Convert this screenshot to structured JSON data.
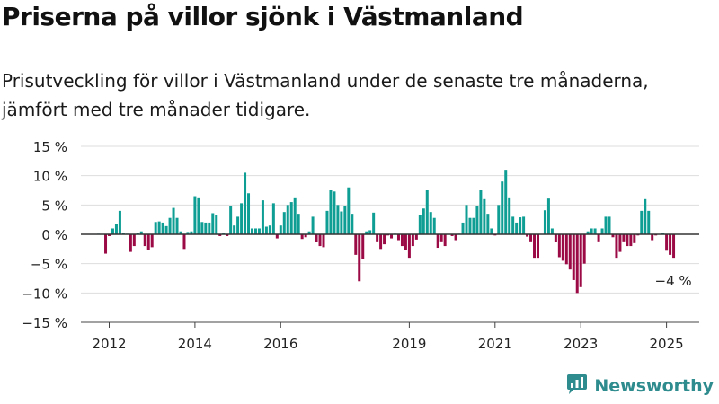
{
  "header": {
    "title": "Priserna på villor sjönk i Västmanland",
    "subtitle": "Prisutveckling för villor i Västmanland under de senaste tre månaderna, jämfört med tre månader tidigare."
  },
  "brand": {
    "name": "Newsworthy",
    "icon": "newsworthy-logo-icon"
  },
  "colors": {
    "positive": "#0f9e94",
    "negative": "#9c0a46",
    "grid": "#dddddd",
    "zero_line": "#333333",
    "brand": "#2e8b8e"
  },
  "chart_data": {
    "type": "bar",
    "x_start": "2011-10",
    "interval": "month",
    "x_ticks": [
      "2012",
      "2014",
      "2016",
      "2019",
      "2021",
      "2023",
      "2025"
    ],
    "y_ticks": [
      "15 %",
      "10 %",
      "5 %",
      "0 %",
      "−5 %",
      "−10 %",
      "−15 %"
    ],
    "ylim": [
      -15,
      15
    ],
    "grid": true,
    "annotation": "−4 %",
    "values": [
      0.1,
      0,
      -3.3,
      -0.3,
      1,
      1.8,
      4,
      0.3,
      0.1,
      -3,
      -2,
      0.2,
      0.5,
      -2,
      -2.7,
      -2.2,
      2.1,
      2.2,
      2,
      1.4,
      2.8,
      4.5,
      2.8,
      0.5,
      -2.5,
      0.4,
      0.5,
      6.5,
      6.3,
      2.1,
      2,
      2,
      3.6,
      3.3,
      -0.3,
      0.3,
      -0.3,
      4.8,
      1.5,
      3,
      5.3,
      10.5,
      7,
      1,
      1,
      1,
      5.8,
      1.3,
      1.5,
      5.3,
      -0.7,
      1.5,
      3.8,
      5,
      5.5,
      6.3,
      3.5,
      -0.8,
      -0.5,
      0.5,
      3,
      -1.3,
      -2,
      -2.2,
      4,
      7.5,
      7.3,
      5,
      3.9,
      4.9,
      8,
      3.5,
      -3.5,
      -8,
      -4.2,
      0.5,
      0.7,
      3.7,
      -1.2,
      -2.5,
      -1.7,
      -0.2,
      -0.7,
      0.1,
      -1,
      -2,
      -2.7,
      -4,
      -2,
      -0.9,
      3.3,
      4.4,
      7.5,
      3.8,
      2.8,
      -2.3,
      -1.2,
      -2,
      0,
      -0.3,
      -1,
      0.1,
      2,
      5,
      2.8,
      2.8,
      4.8,
      7.5,
      6,
      3.5,
      1,
      -0.2,
      5,
      9,
      11,
      6.3,
      3,
      2,
      2.9,
      3,
      -0.4,
      -1.2,
      -4,
      -4,
      0,
      4.1,
      6.1,
      1,
      -1.3,
      -3.9,
      -4.5,
      -5.1,
      -6,
      -7.8,
      -10,
      -9,
      -5,
      0.5,
      1,
      1,
      -1.2,
      1,
      3,
      3,
      -0.5,
      -4,
      -3,
      -1.2,
      -2,
      -2,
      -1.5,
      -0.2,
      4,
      6,
      4,
      -1,
      -0.2,
      0,
      0.2,
      -2.8,
      -3.5,
      -4
    ]
  }
}
